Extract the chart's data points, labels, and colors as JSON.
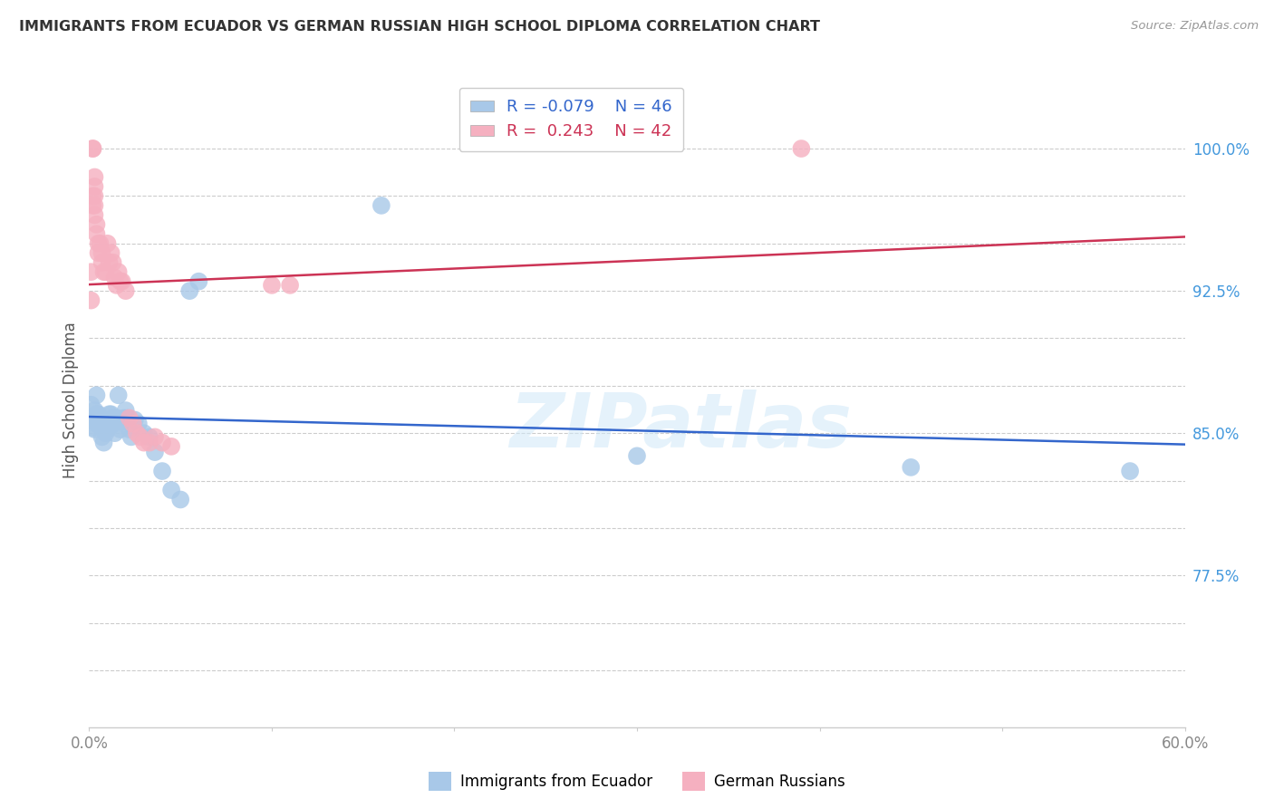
{
  "title": "IMMIGRANTS FROM ECUADOR VS GERMAN RUSSIAN HIGH SCHOOL DIPLOMA CORRELATION CHART",
  "source": "Source: ZipAtlas.com",
  "ylabel": "High School Diploma",
  "xmin": 0.0,
  "xmax": 0.6,
  "ymin": 0.695,
  "ymax": 1.04,
  "ytick_vals": [
    0.725,
    0.75,
    0.775,
    0.8,
    0.825,
    0.85,
    0.875,
    0.9,
    0.925,
    0.95,
    0.975,
    1.0
  ],
  "ytick_labels": [
    "",
    "",
    "77.5%",
    "",
    "",
    "85.0%",
    "",
    "",
    "92.5%",
    "",
    "",
    "100.0%"
  ],
  "blue_R": "-0.079",
  "blue_N": "46",
  "pink_R": "0.243",
  "pink_N": "42",
  "legend_label_blue": "Immigrants from Ecuador",
  "legend_label_pink": "German Russians",
  "blue_color": "#a8c8e8",
  "pink_color": "#f5b0c0",
  "blue_line_color": "#3366cc",
  "pink_line_color": "#cc3355",
  "watermark": "ZIPatlas",
  "blue_x": [
    0.001,
    0.002,
    0.002,
    0.003,
    0.003,
    0.003,
    0.004,
    0.004,
    0.004,
    0.005,
    0.005,
    0.006,
    0.007,
    0.008,
    0.008,
    0.009,
    0.01,
    0.01,
    0.011,
    0.012,
    0.012,
    0.013,
    0.014,
    0.015,
    0.016,
    0.017,
    0.018,
    0.019,
    0.02,
    0.021,
    0.022,
    0.023,
    0.025,
    0.027,
    0.03,
    0.033,
    0.036,
    0.04,
    0.045,
    0.05,
    0.055,
    0.06,
    0.16,
    0.3,
    0.45,
    0.57
  ],
  "blue_y": [
    0.865,
    0.858,
    0.853,
    0.862,
    0.858,
    0.852,
    0.87,
    0.86,
    0.855,
    0.86,
    0.855,
    0.855,
    0.848,
    0.855,
    0.845,
    0.85,
    0.856,
    0.852,
    0.86,
    0.86,
    0.854,
    0.858,
    0.85,
    0.858,
    0.87,
    0.852,
    0.856,
    0.858,
    0.862,
    0.858,
    0.852,
    0.848,
    0.857,
    0.855,
    0.85,
    0.848,
    0.84,
    0.83,
    0.82,
    0.815,
    0.925,
    0.93,
    0.97,
    0.838,
    0.832,
    0.83
  ],
  "pink_x": [
    0.001,
    0.001,
    0.002,
    0.002,
    0.002,
    0.002,
    0.003,
    0.003,
    0.003,
    0.003,
    0.003,
    0.004,
    0.004,
    0.005,
    0.005,
    0.006,
    0.007,
    0.007,
    0.008,
    0.009,
    0.01,
    0.011,
    0.012,
    0.013,
    0.014,
    0.015,
    0.016,
    0.017,
    0.018,
    0.02,
    0.022,
    0.024,
    0.026,
    0.028,
    0.03,
    0.033,
    0.036,
    0.04,
    0.045,
    0.1,
    0.11,
    0.39
  ],
  "pink_y": [
    0.935,
    0.92,
    0.975,
    0.97,
    1.0,
    1.0,
    0.985,
    0.98,
    0.975,
    0.97,
    0.965,
    0.96,
    0.955,
    0.95,
    0.945,
    0.95,
    0.94,
    0.945,
    0.935,
    0.935,
    0.95,
    0.94,
    0.945,
    0.94,
    0.932,
    0.928,
    0.935,
    0.93,
    0.93,
    0.925,
    0.858,
    0.855,
    0.85,
    0.848,
    0.845,
    0.845,
    0.848,
    0.845,
    0.843,
    0.928,
    0.928,
    1.0
  ]
}
